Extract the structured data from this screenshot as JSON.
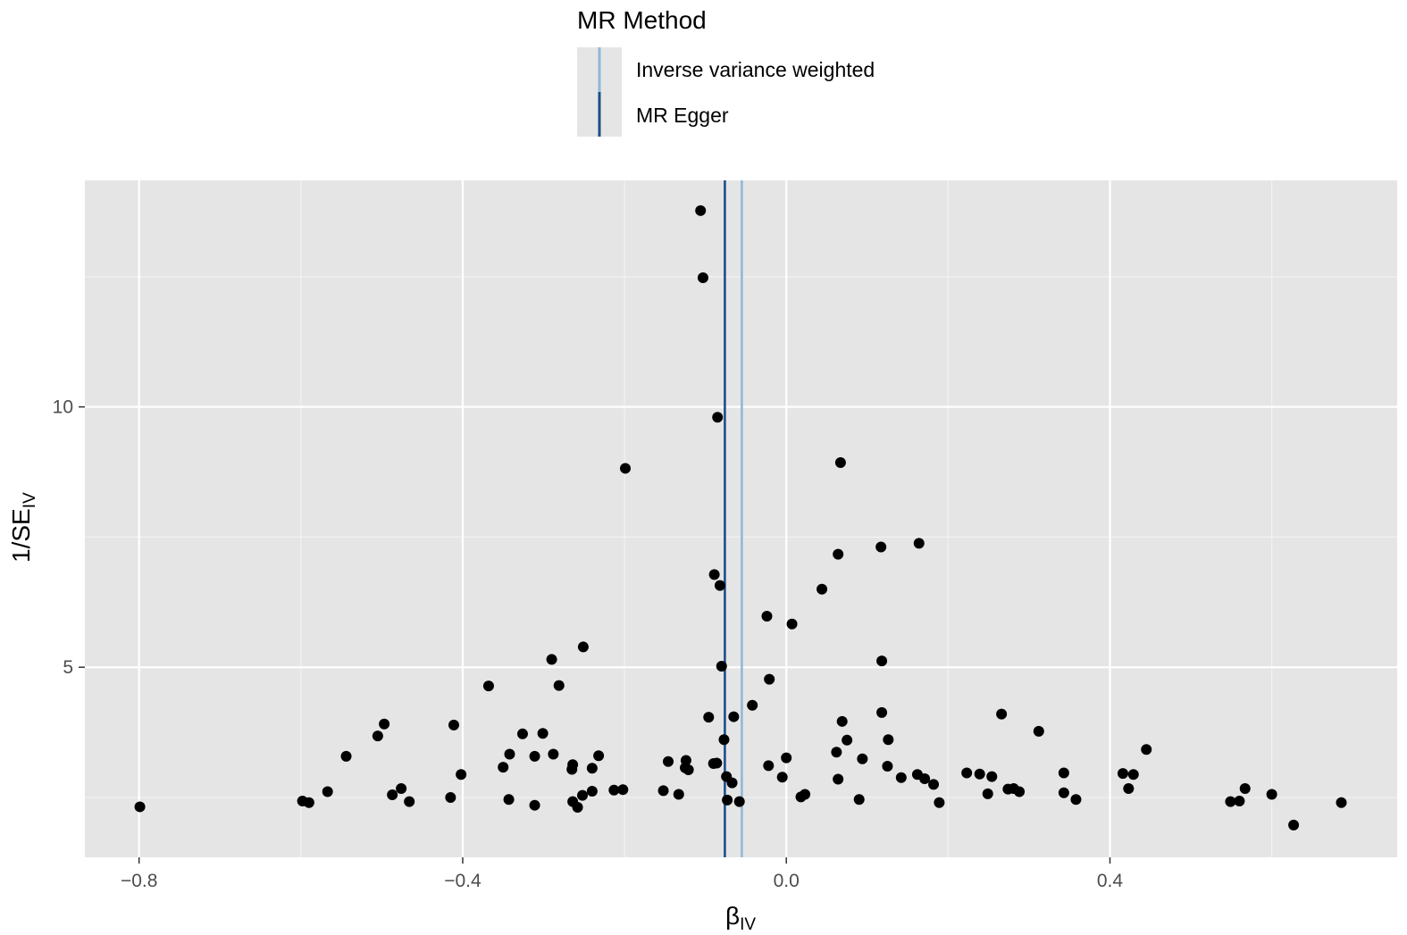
{
  "chart_data": {
    "type": "scatter",
    "title": "",
    "xlabel": "β",
    "xlabel_subscript": "IV",
    "ylabel": "1/SE",
    "ylabel_subscript": "IV",
    "xlim": [
      -0.867,
      0.755
    ],
    "ylim": [
      1.35,
      14.35
    ],
    "x_ticks": [
      -0.8,
      -0.4,
      0.0,
      0.4
    ],
    "x_tick_labels": [
      "−0.8",
      "−0.4",
      "0.0",
      "0.4"
    ],
    "y_ticks": [
      5,
      10
    ],
    "y_tick_labels": [
      "5",
      "10"
    ],
    "grid": true,
    "panel_background": "#e5e5e5",
    "point_color": "#000000",
    "legend": {
      "title": "MR Method",
      "position": "top",
      "entries": [
        {
          "label": "Inverse variance weighted",
          "color": "#8fb8d9"
        },
        {
          "label": "MR Egger",
          "color": "#1b4f8a"
        }
      ]
    },
    "lines": [
      {
        "method": "Inverse variance weighted",
        "x": -0.055
      },
      {
        "method": "MR Egger",
        "x": -0.076
      }
    ],
    "points": [
      [
        -0.106,
        13.77
      ],
      [
        -0.103,
        12.48
      ],
      [
        -0.085,
        9.8
      ],
      [
        -0.199,
        8.82
      ],
      [
        0.067,
        8.93
      ],
      [
        0.164,
        7.38
      ],
      [
        0.117,
        7.31
      ],
      [
        0.064,
        7.17
      ],
      [
        -0.089,
        6.78
      ],
      [
        -0.082,
        6.57
      ],
      [
        0.044,
        6.5
      ],
      [
        -0.024,
        5.98
      ],
      [
        0.007,
        5.83
      ],
      [
        -0.251,
        5.39
      ],
      [
        -0.29,
        5.15
      ],
      [
        0.118,
        5.12
      ],
      [
        -0.08,
        5.02
      ],
      [
        -0.368,
        4.64
      ],
      [
        -0.281,
        4.65
      ],
      [
        -0.021,
        4.77
      ],
      [
        -0.042,
        4.27
      ],
      [
        -0.096,
        4.04
      ],
      [
        -0.065,
        4.05
      ],
      [
        0.118,
        4.13
      ],
      [
        0.266,
        4.1
      ],
      [
        0.069,
        3.96
      ],
      [
        -0.411,
        3.89
      ],
      [
        -0.497,
        3.91
      ],
      [
        -0.505,
        3.68
      ],
      [
        -0.326,
        3.72
      ],
      [
        -0.301,
        3.73
      ],
      [
        0.312,
        3.77
      ],
      [
        -0.077,
        3.61
      ],
      [
        0.075,
        3.6
      ],
      [
        0.126,
        3.61
      ],
      [
        0.445,
        3.42
      ],
      [
        -0.544,
        3.29
      ],
      [
        -0.342,
        3.33
      ],
      [
        -0.311,
        3.29
      ],
      [
        -0.288,
        3.33
      ],
      [
        -0.232,
        3.3
      ],
      [
        -0.146,
        3.19
      ],
      [
        -0.124,
        3.21
      ],
      [
        -0.09,
        3.15
      ],
      [
        -0.086,
        3.16
      ],
      [
        0.062,
        3.37
      ],
      [
        0.094,
        3.24
      ],
      [
        0.0,
        3.26
      ],
      [
        -0.022,
        3.11
      ],
      [
        -0.35,
        3.08
      ],
      [
        -0.264,
        3.13
      ],
      [
        -0.265,
        3.04
      ],
      [
        -0.24,
        3.06
      ],
      [
        -0.125,
        3.07
      ],
      [
        -0.121,
        3.03
      ],
      [
        0.125,
        3.1
      ],
      [
        -0.402,
        2.94
      ],
      [
        -0.005,
        2.89
      ],
      [
        0.064,
        2.85
      ],
      [
        0.142,
        2.88
      ],
      [
        0.162,
        2.94
      ],
      [
        0.171,
        2.86
      ],
      [
        0.182,
        2.75
      ],
      [
        0.223,
        2.97
      ],
      [
        0.239,
        2.95
      ],
      [
        0.254,
        2.9
      ],
      [
        0.343,
        2.97
      ],
      [
        0.416,
        2.96
      ],
      [
        0.429,
        2.94
      ],
      [
        -0.074,
        2.9
      ],
      [
        -0.067,
        2.78
      ],
      [
        -0.567,
        2.61
      ],
      [
        -0.487,
        2.55
      ],
      [
        -0.476,
        2.67
      ],
      [
        -0.415,
        2.5
      ],
      [
        -0.213,
        2.64
      ],
      [
        -0.202,
        2.65
      ],
      [
        -0.152,
        2.63
      ],
      [
        -0.133,
        2.56
      ],
      [
        -0.24,
        2.62
      ],
      [
        -0.252,
        2.54
      ],
      [
        0.018,
        2.51
      ],
      [
        0.023,
        2.56
      ],
      [
        0.09,
        2.46
      ],
      [
        0.249,
        2.57
      ],
      [
        0.274,
        2.66
      ],
      [
        0.281,
        2.67
      ],
      [
        0.288,
        2.61
      ],
      [
        0.343,
        2.59
      ],
      [
        0.423,
        2.67
      ],
      [
        0.567,
        2.67
      ],
      [
        0.6,
        2.56
      ],
      [
        -0.598,
        2.43
      ],
      [
        -0.59,
        2.4
      ],
      [
        -0.466,
        2.42
      ],
      [
        -0.343,
        2.46
      ],
      [
        -0.311,
        2.35
      ],
      [
        -0.264,
        2.42
      ],
      [
        -0.258,
        2.31
      ],
      [
        -0.073,
        2.45
      ],
      [
        -0.058,
        2.42
      ],
      [
        0.189,
        2.4
      ],
      [
        0.358,
        2.46
      ],
      [
        0.549,
        2.42
      ],
      [
        0.56,
        2.43
      ],
      [
        0.686,
        2.4
      ],
      [
        -0.799,
        2.32
      ],
      [
        0.627,
        1.97
      ]
    ]
  }
}
